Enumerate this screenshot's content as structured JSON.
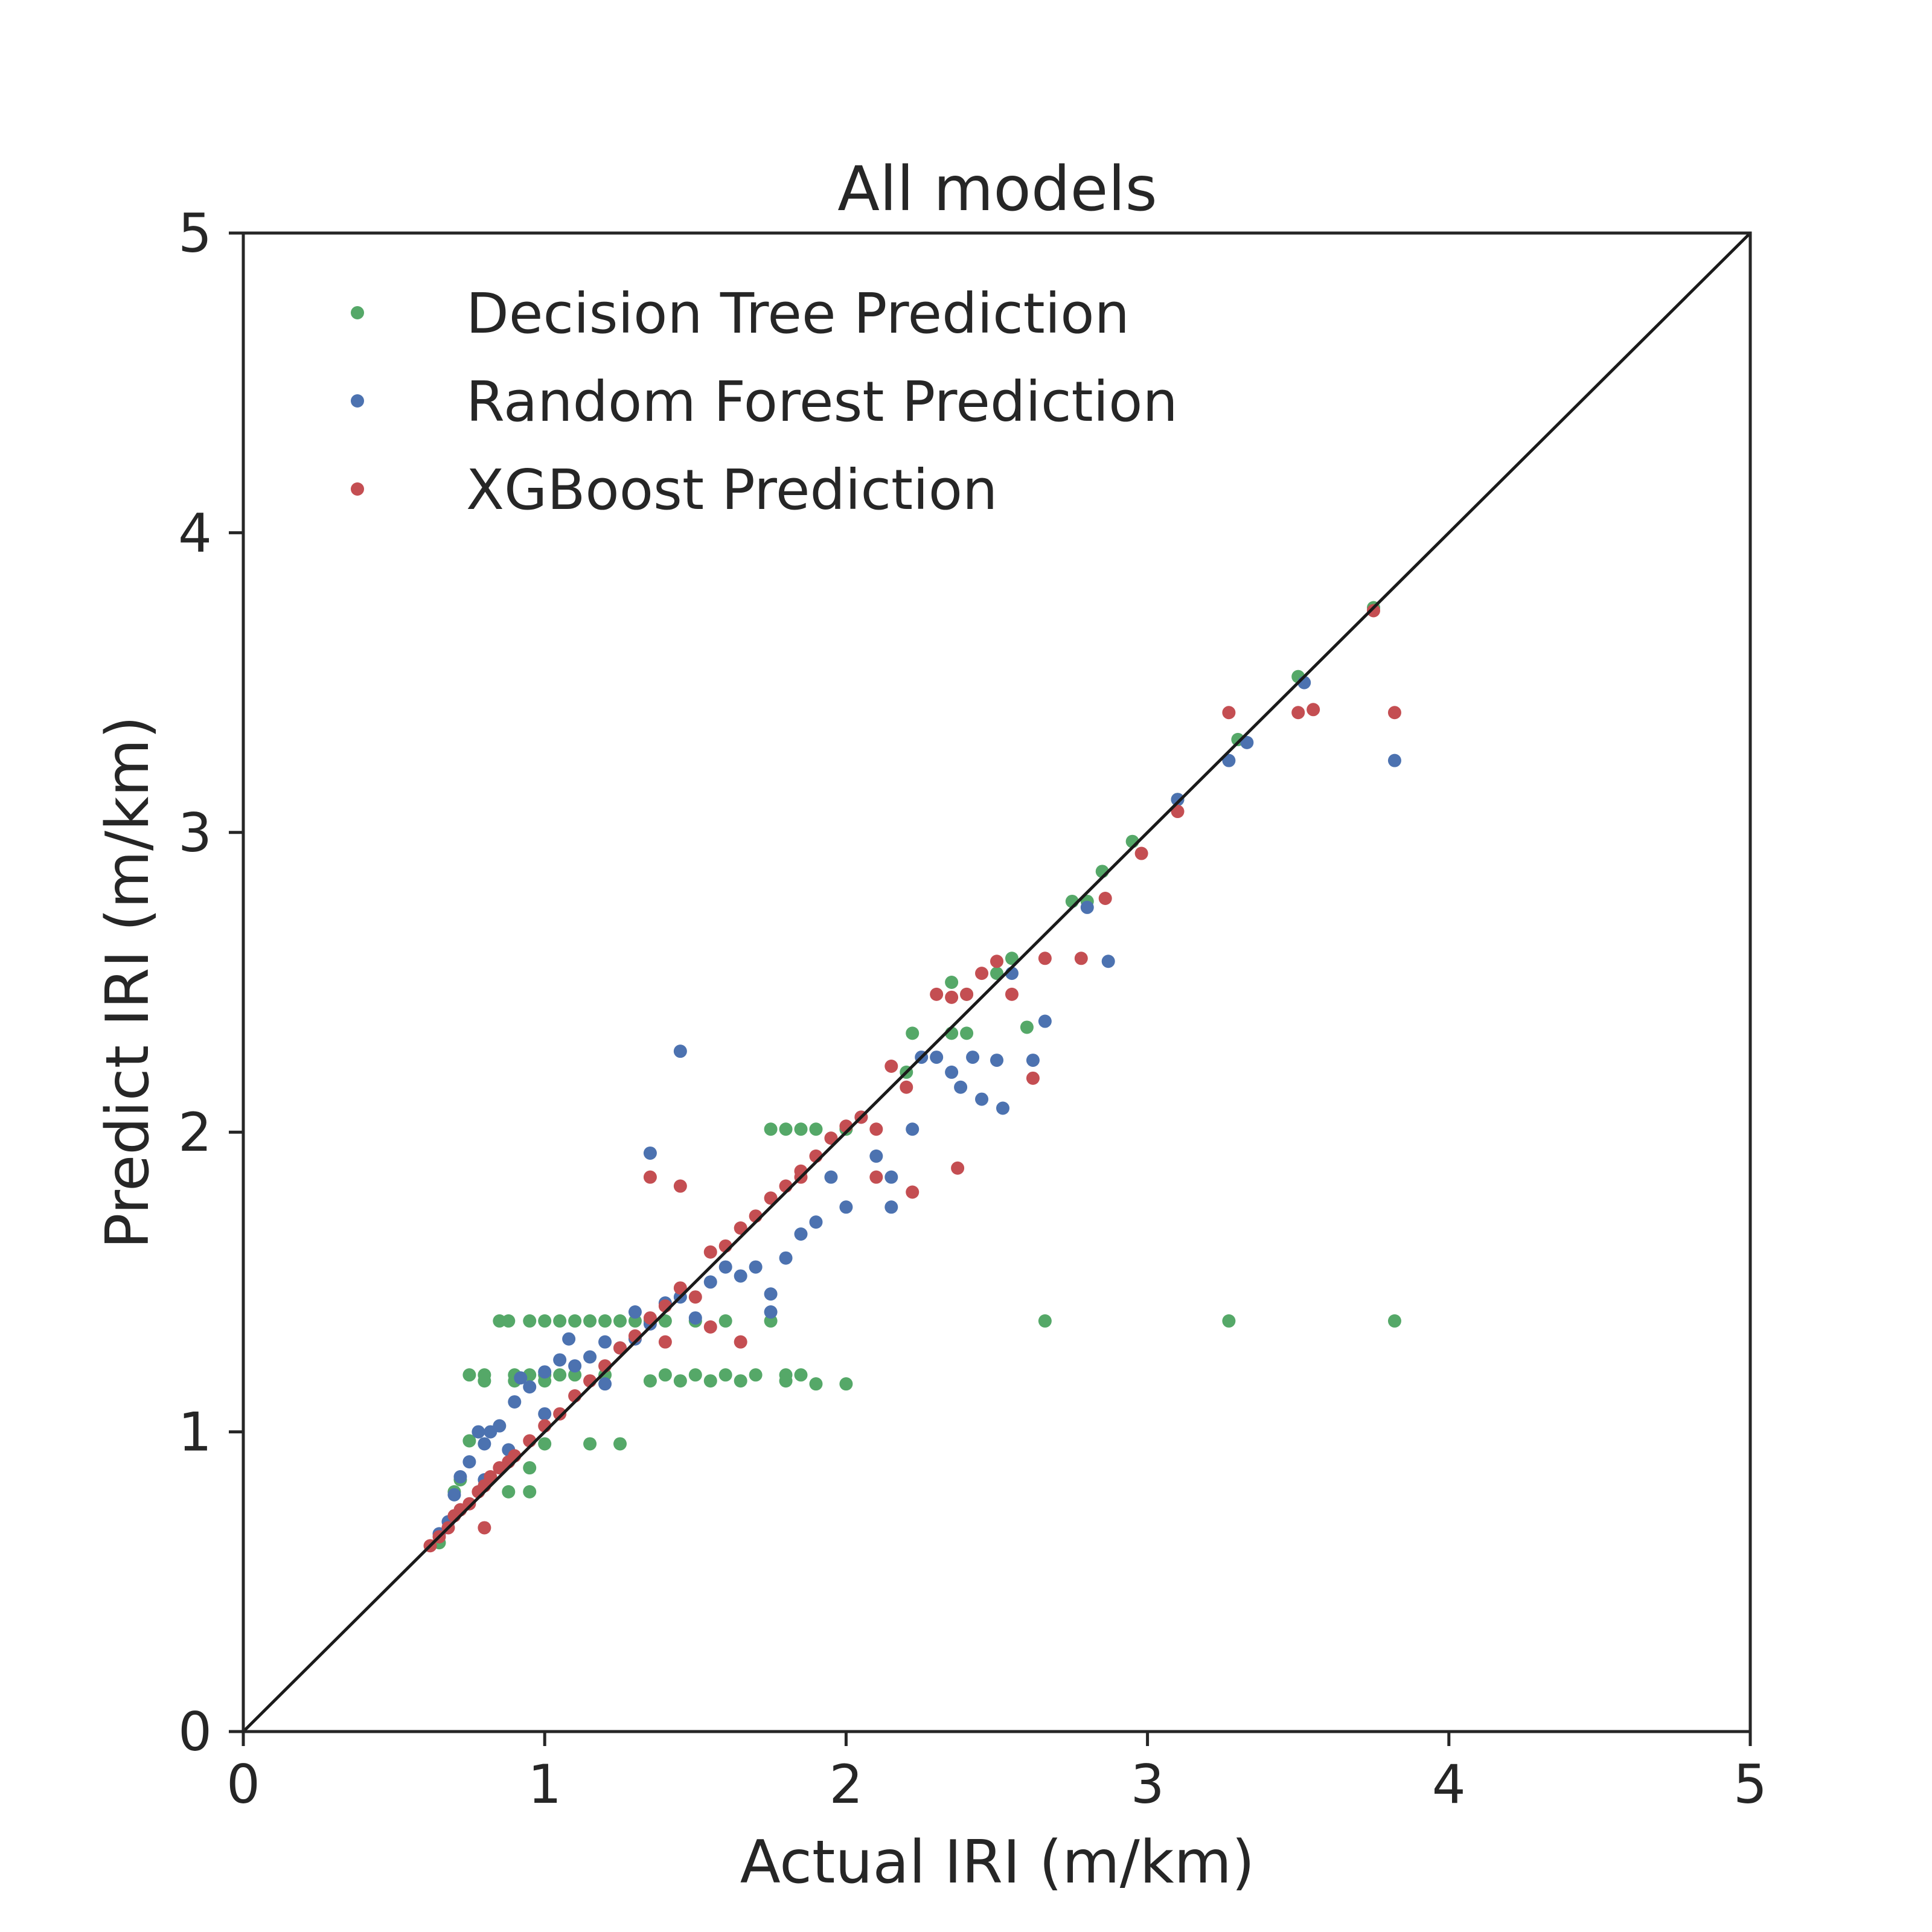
{
  "chart_data": {
    "type": "scatter",
    "title": "All models",
    "xlabel": "Actual IRI (m/km)",
    "ylabel": "Predict IRI (m/km)",
    "xlim": [
      0,
      5
    ],
    "ylim": [
      0,
      5
    ],
    "xticks": [
      "0",
      "1",
      "2",
      "3",
      "4",
      "5"
    ],
    "yticks": [
      "0",
      "1",
      "2",
      "3",
      "4",
      "5"
    ],
    "grid": false,
    "legend_position": "top-left",
    "reference_line": {
      "x": [
        0,
        5
      ],
      "y": [
        0,
        5
      ],
      "color": "#1a1a1a"
    },
    "series": [
      {
        "name": "Decision Tree Prediction",
        "color": "#55a868",
        "points": [
          [
            0.65,
            0.63
          ],
          [
            0.7,
            0.8
          ],
          [
            0.72,
            0.84
          ],
          [
            0.75,
            0.97
          ],
          [
            0.75,
            1.19
          ],
          [
            0.8,
            1.19
          ],
          [
            0.85,
            1.37
          ],
          [
            0.88,
            1.37
          ],
          [
            0.9,
            1.19
          ],
          [
            0.95,
            1.19
          ],
          [
            0.95,
            1.37
          ],
          [
            1.0,
            1.37
          ],
          [
            1.05,
            1.37
          ],
          [
            1.1,
            1.37
          ],
          [
            1.15,
            1.37
          ],
          [
            1.2,
            1.37
          ],
          [
            1.25,
            1.37
          ],
          [
            1.3,
            1.37
          ],
          [
            1.35,
            1.37
          ],
          [
            1.4,
            1.37
          ],
          [
            1.5,
            1.37
          ],
          [
            1.6,
            1.37
          ],
          [
            1.75,
            1.37
          ],
          [
            1.0,
            1.19
          ],
          [
            1.05,
            1.19
          ],
          [
            1.1,
            1.19
          ],
          [
            1.2,
            1.19
          ],
          [
            1.4,
            1.19
          ],
          [
            1.5,
            1.19
          ],
          [
            1.6,
            1.19
          ],
          [
            1.7,
            1.19
          ],
          [
            1.8,
            1.19
          ],
          [
            1.85,
            1.19
          ],
          [
            0.8,
            1.17
          ],
          [
            0.9,
            1.17
          ],
          [
            1.0,
            1.17
          ],
          [
            1.35,
            1.17
          ],
          [
            1.45,
            1.17
          ],
          [
            1.55,
            1.17
          ],
          [
            1.65,
            1.17
          ],
          [
            1.8,
            1.17
          ],
          [
            1.9,
            1.16
          ],
          [
            2.0,
            1.16
          ],
          [
            1.0,
            0.96
          ],
          [
            1.15,
            0.96
          ],
          [
            1.25,
            0.96
          ],
          [
            0.95,
            0.88
          ],
          [
            0.95,
            0.8
          ],
          [
            0.88,
            0.8
          ],
          [
            1.75,
            2.01
          ],
          [
            1.8,
            2.01
          ],
          [
            1.85,
            2.01
          ],
          [
            1.9,
            2.01
          ],
          [
            2.0,
            2.01
          ],
          [
            2.2,
            2.2
          ],
          [
            2.22,
            2.33
          ],
          [
            2.35,
            2.33
          ],
          [
            2.4,
            2.33
          ],
          [
            2.35,
            2.5
          ],
          [
            2.4,
            2.46
          ],
          [
            2.5,
            2.53
          ],
          [
            2.55,
            2.58
          ],
          [
            2.6,
            2.35
          ],
          [
            2.75,
            2.77
          ],
          [
            2.8,
            2.77
          ],
          [
            2.85,
            2.87
          ],
          [
            2.95,
            2.97
          ],
          [
            3.1,
            3.11
          ],
          [
            3.3,
            3.31
          ],
          [
            3.5,
            3.52
          ],
          [
            3.75,
            3.75
          ],
          [
            2.66,
            1.37
          ],
          [
            3.27,
            1.37
          ],
          [
            3.82,
            1.37
          ]
        ]
      },
      {
        "name": "Random Forest Prediction",
        "color": "#4c72b0",
        "points": [
          [
            0.65,
            0.66
          ],
          [
            0.68,
            0.7
          ],
          [
            0.7,
            0.79
          ],
          [
            0.72,
            0.85
          ],
          [
            0.75,
            0.9
          ],
          [
            0.78,
            1.0
          ],
          [
            0.8,
            0.96
          ],
          [
            0.82,
            1.0
          ],
          [
            0.85,
            1.02
          ],
          [
            0.88,
            0.94
          ],
          [
            0.9,
            1.1
          ],
          [
            0.92,
            1.18
          ],
          [
            0.95,
            1.15
          ],
          [
            1.0,
            1.2
          ],
          [
            1.05,
            1.24
          ],
          [
            1.08,
            1.31
          ],
          [
            1.1,
            1.22
          ],
          [
            1.15,
            1.25
          ],
          [
            1.2,
            1.3
          ],
          [
            1.25,
            1.28
          ],
          [
            1.3,
            1.31
          ],
          [
            1.3,
            1.4
          ],
          [
            1.35,
            1.36
          ],
          [
            1.4,
            1.43
          ],
          [
            1.45,
            1.45
          ],
          [
            1.5,
            1.38
          ],
          [
            1.55,
            1.5
          ],
          [
            1.6,
            1.55
          ],
          [
            1.65,
            1.52
          ],
          [
            1.7,
            1.55
          ],
          [
            1.75,
            1.4
          ],
          [
            1.8,
            1.58
          ],
          [
            1.85,
            1.66
          ],
          [
            1.9,
            1.7
          ],
          [
            1.95,
            1.85
          ],
          [
            2.0,
            1.75
          ],
          [
            2.05,
            2.05
          ],
          [
            2.1,
            1.92
          ],
          [
            2.15,
            1.75
          ],
          [
            2.15,
            1.85
          ],
          [
            2.22,
            2.01
          ],
          [
            2.25,
            2.25
          ],
          [
            2.3,
            2.25
          ],
          [
            2.35,
            2.2
          ],
          [
            2.38,
            2.15
          ],
          [
            2.42,
            2.25
          ],
          [
            2.45,
            2.11
          ],
          [
            2.5,
            2.24
          ],
          [
            2.52,
            2.08
          ],
          [
            2.55,
            2.53
          ],
          [
            2.62,
            2.24
          ],
          [
            2.66,
            2.37
          ],
          [
            2.8,
            2.75
          ],
          [
            2.87,
            2.57
          ],
          [
            3.1,
            3.11
          ],
          [
            3.27,
            3.24
          ],
          [
            3.33,
            3.3
          ],
          [
            3.52,
            3.5
          ],
          [
            3.82,
            3.24
          ],
          [
            1.35,
            1.93
          ],
          [
            1.45,
            2.27
          ],
          [
            1.75,
            1.46
          ],
          [
            0.8,
            0.84
          ],
          [
            1.0,
            1.06
          ],
          [
            1.2,
            1.16
          ]
        ]
      },
      {
        "name": "XGBoost Prediction",
        "color": "#c44e52",
        "points": [
          [
            0.62,
            0.62
          ],
          [
            0.65,
            0.65
          ],
          [
            0.68,
            0.68
          ],
          [
            0.7,
            0.72
          ],
          [
            0.72,
            0.74
          ],
          [
            0.75,
            0.76
          ],
          [
            0.78,
            0.8
          ],
          [
            0.8,
            0.82
          ],
          [
            0.82,
            0.85
          ],
          [
            0.85,
            0.88
          ],
          [
            0.88,
            0.9
          ],
          [
            0.9,
            0.92
          ],
          [
            0.95,
            0.97
          ],
          [
            1.0,
            1.02
          ],
          [
            1.05,
            1.06
          ],
          [
            1.1,
            1.12
          ],
          [
            1.15,
            1.17
          ],
          [
            1.2,
            1.22
          ],
          [
            1.25,
            1.28
          ],
          [
            1.3,
            1.32
          ],
          [
            1.35,
            1.38
          ],
          [
            1.4,
            1.42
          ],
          [
            1.45,
            1.48
          ],
          [
            1.5,
            1.45
          ],
          [
            1.55,
            1.6
          ],
          [
            1.6,
            1.62
          ],
          [
            1.65,
            1.68
          ],
          [
            1.7,
            1.72
          ],
          [
            1.75,
            1.78
          ],
          [
            1.8,
            1.82
          ],
          [
            1.85,
            1.87
          ],
          [
            1.9,
            1.92
          ],
          [
            1.95,
            1.98
          ],
          [
            2.0,
            2.02
          ],
          [
            2.05,
            2.05
          ],
          [
            2.1,
            2.01
          ],
          [
            2.15,
            2.22
          ],
          [
            2.2,
            2.15
          ],
          [
            2.3,
            2.46
          ],
          [
            2.35,
            2.45
          ],
          [
            2.4,
            2.46
          ],
          [
            2.45,
            2.53
          ],
          [
            2.5,
            2.57
          ],
          [
            2.55,
            2.46
          ],
          [
            2.62,
            2.18
          ],
          [
            2.66,
            2.58
          ],
          [
            2.78,
            2.58
          ],
          [
            2.86,
            2.78
          ],
          [
            2.98,
            2.93
          ],
          [
            3.1,
            3.07
          ],
          [
            3.27,
            3.4
          ],
          [
            3.5,
            3.4
          ],
          [
            3.55,
            3.41
          ],
          [
            3.75,
            3.74
          ],
          [
            3.82,
            3.4
          ],
          [
            1.35,
            1.85
          ],
          [
            1.45,
            1.82
          ],
          [
            2.37,
            1.88
          ],
          [
            0.8,
            0.68
          ],
          [
            1.65,
            1.3
          ],
          [
            1.55,
            1.35
          ],
          [
            1.4,
            1.3
          ],
          [
            1.85,
            1.85
          ],
          [
            2.1,
            1.85
          ],
          [
            2.22,
            1.8
          ]
        ]
      }
    ]
  }
}
